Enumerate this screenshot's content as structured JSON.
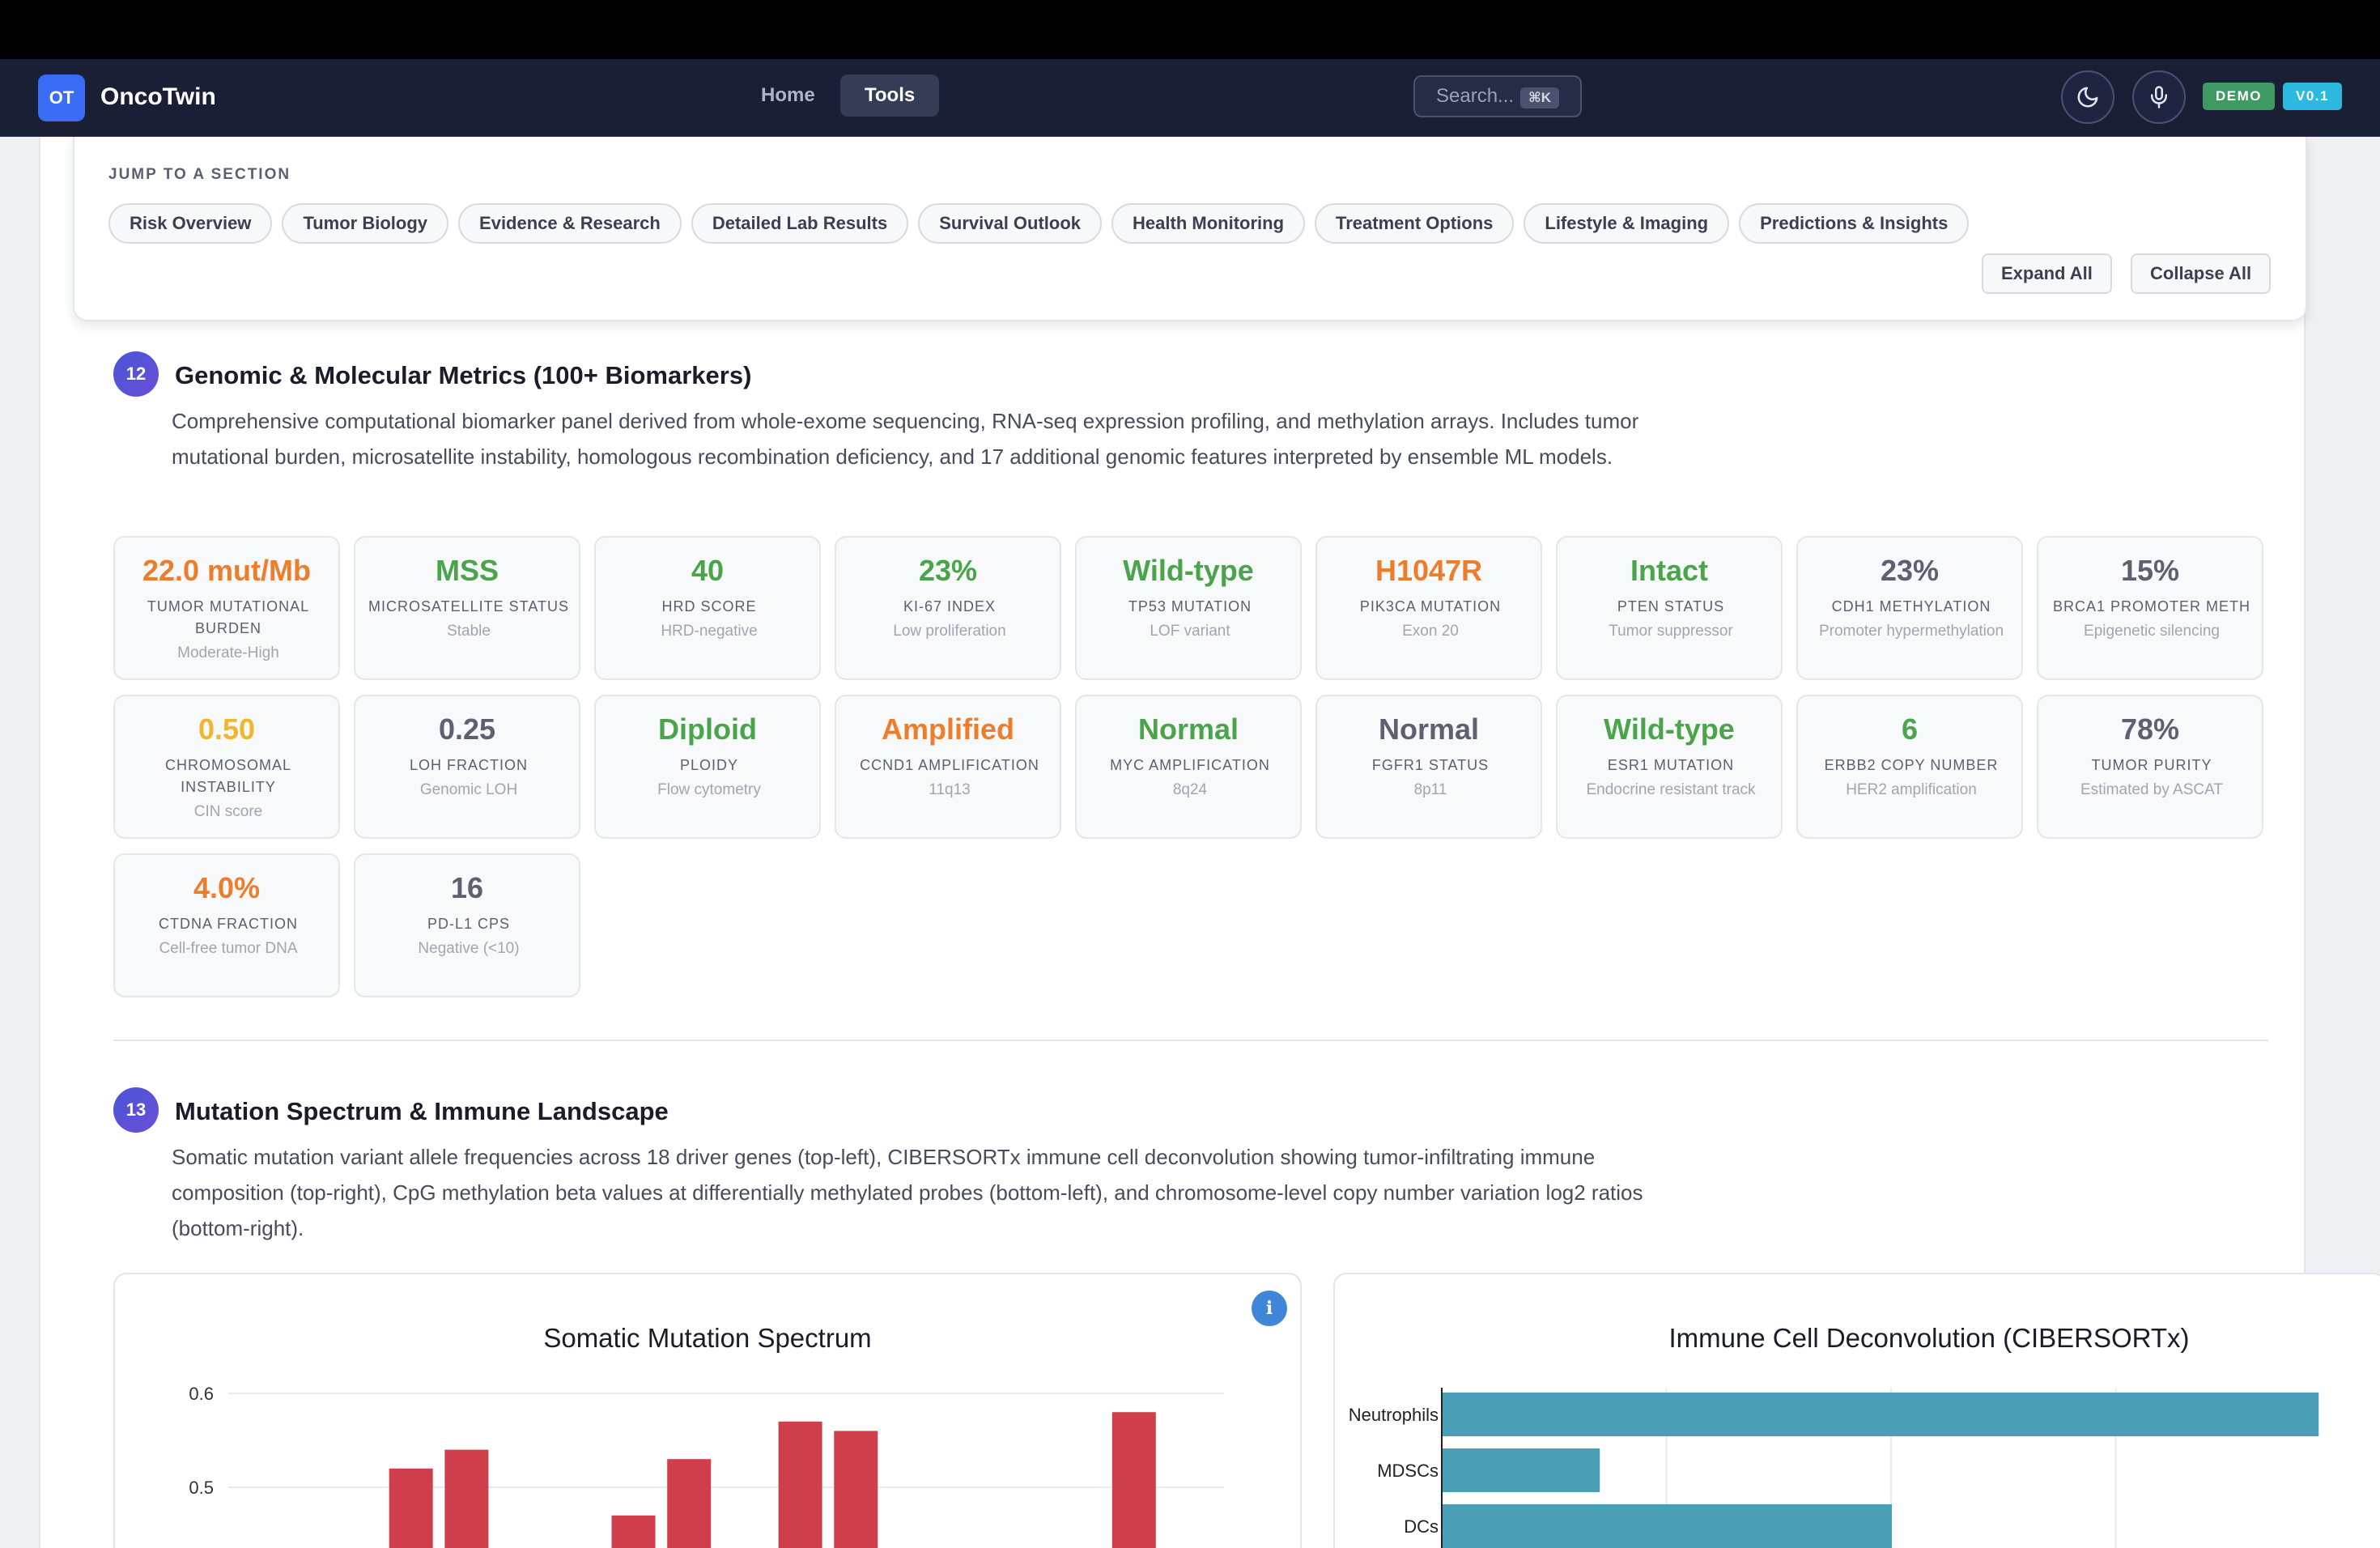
{
  "app": {
    "logo": "OT",
    "name": "OncoTwin"
  },
  "nav": {
    "home": "Home",
    "tools": "Tools"
  },
  "search": {
    "placeholder": "Search...",
    "shortcut": "⌘K"
  },
  "badges": {
    "demo": "DEMO",
    "version": "V0.1"
  },
  "jump": {
    "title": "JUMP TO A SECTION",
    "chips": [
      "Risk Overview",
      "Tumor Biology",
      "Evidence & Research",
      "Detailed Lab Results",
      "Survival Outlook",
      "Health Monitoring",
      "Treatment Options",
      "Lifestyle & Imaging",
      "Predictions & Insights"
    ],
    "expand_all": "Expand All",
    "collapse_all": "Collapse All"
  },
  "section12": {
    "number": "12",
    "title": "Genomic & Molecular Metrics (100+ Biomarkers)",
    "description": "Comprehensive computational biomarker panel derived from whole-exome sequencing, RNA-seq expression profiling, and methylation arrays. Includes tumor mutational burden, microsatellite instability, homologous recombination deficiency, and 17 additional genomic features interpreted by ensemble ML models.",
    "metrics": [
      {
        "value": "22.0 mut/Mb",
        "label": "Tumor Mutational Burden",
        "sub": "Moderate-High",
        "color": "#ee7d2b"
      },
      {
        "value": "MSS",
        "label": "Microsatellite Status",
        "sub": "Stable",
        "color": "#4aa44a"
      },
      {
        "value": "40",
        "label": "HRD Score",
        "sub": "HRD-negative",
        "color": "#4aa44a"
      },
      {
        "value": "23%",
        "label": "Ki-67 Index",
        "sub": "Low proliferation",
        "color": "#4aa44a"
      },
      {
        "value": "Wild-type",
        "label": "TP53 Mutation",
        "sub": "LOF variant",
        "color": "#4aa44a"
      },
      {
        "value": "H1047R",
        "label": "PIK3CA Mutation",
        "sub": "Exon 20",
        "color": "#ee7d2b"
      },
      {
        "value": "Intact",
        "label": "PTEN Status",
        "sub": "Tumor suppressor",
        "color": "#4aa44a"
      },
      {
        "value": "23%",
        "label": "CDH1 Methylation",
        "sub": "Promoter hypermethylation",
        "color": "#5c6170"
      },
      {
        "value": "15%",
        "label": "BRCA1 Promoter Meth",
        "sub": "Epigenetic silencing",
        "color": "#5c6170"
      },
      {
        "value": "0.50",
        "label": "Chromosomal Instability",
        "sub": "CIN score",
        "color": "#f2b530"
      },
      {
        "value": "0.25",
        "label": "LOH Fraction",
        "sub": "Genomic LOH",
        "color": "#5c6170"
      },
      {
        "value": "Diploid",
        "label": "Ploidy",
        "sub": "Flow cytometry",
        "color": "#4aa44a"
      },
      {
        "value": "Amplified",
        "label": "CCND1 Amplification",
        "sub": "11q13",
        "color": "#ee7d2b"
      },
      {
        "value": "Normal",
        "label": "MYC Amplification",
        "sub": "8q24",
        "color": "#4aa44a"
      },
      {
        "value": "Normal",
        "label": "FGFR1 Status",
        "sub": "8p11",
        "color": "#5c6170"
      },
      {
        "value": "Wild-type",
        "label": "ESR1 Mutation",
        "sub": "Endocrine resistant track",
        "color": "#4aa44a"
      },
      {
        "value": "6",
        "label": "ERBB2 Copy Number",
        "sub": "HER2 amplification",
        "color": "#4aa44a"
      },
      {
        "value": "78%",
        "label": "Tumor Purity",
        "sub": "Estimated by ASCAT",
        "color": "#5c6170"
      },
      {
        "value": "4.0%",
        "label": "ctDNA Fraction",
        "sub": "Cell-free tumor DNA",
        "color": "#ee7d2b"
      },
      {
        "value": "16",
        "label": "PD-L1 CPS",
        "sub": "Negative (<10)",
        "color": "#5c6170"
      }
    ]
  },
  "section13": {
    "number": "13",
    "title": "Mutation Spectrum & Immune Landscape",
    "description": "Somatic mutation variant allele frequencies across 18 driver genes (top-left), CIBERSORTx immune cell deconvolution showing tumor-infiltrating immune composition (top-right), CpG methylation beta values at differentially methylated probes (bottom-left), and chromosome-level copy number variation log2 ratios (bottom-right).",
    "info_icon": "i"
  },
  "chart_data": [
    {
      "type": "bar",
      "title": "Somatic Mutation Spectrum",
      "yticks": [
        0.6,
        0.5
      ],
      "ylim": [
        0.4,
        0.6
      ],
      "values": [
        null,
        0.52,
        0.54,
        null,
        null,
        0.47,
        0.53,
        null,
        0.57,
        0.56,
        null,
        null,
        null,
        null,
        0.58
      ],
      "color": "#cf3f4b",
      "grid": true
    },
    {
      "type": "bar",
      "orientation": "horizontal",
      "title": "Immune Cell Deconvolution (CIBERSORTx)",
      "categories": [
        "Neutrophils",
        "MDSCs",
        "DCs"
      ],
      "values": [
        0.39,
        0.07,
        0.2
      ],
      "xlim": [
        0,
        0.4
      ],
      "color": "#4a9eb5",
      "grid": true
    }
  ],
  "colors": {
    "accent": "#3b6cf6",
    "nav_bg": "#1a1f36",
    "orange": "#ee7d2b",
    "green": "#4aa44a",
    "amber": "#f2b530"
  }
}
